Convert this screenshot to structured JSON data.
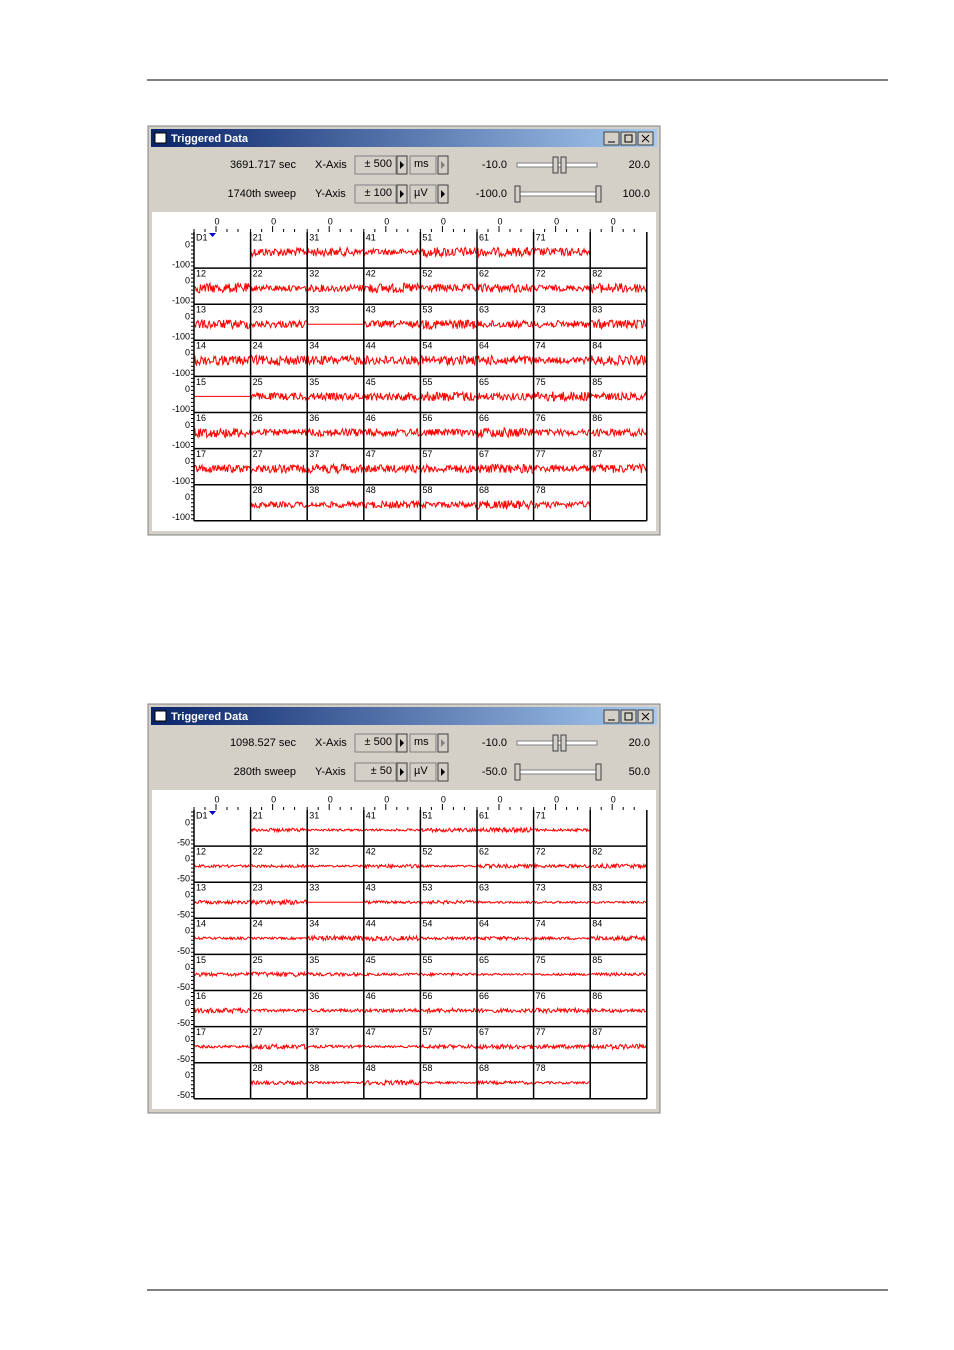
{
  "windows": [
    {
      "title": "Triggered Data",
      "time": "3691.717 sec",
      "sweep": "1740th sweep",
      "x_axis_label": "X-Axis",
      "x_range": "± 500",
      "x_unit": "ms",
      "x_min": "-10.0",
      "x_max": "20.0",
      "y_axis_label": "Y-Axis",
      "y_range": "± 100",
      "y_unit": "µV",
      "y_min": "-100.0",
      "y_max": "100.0",
      "x_tick": "0",
      "y_ticks": [
        "0",
        "-100"
      ],
      "channels": [
        [
          "D1",
          "21",
          "31",
          "41",
          "51",
          "61",
          "71",
          null
        ],
        [
          "12",
          "22",
          "32",
          "42",
          "52",
          "62",
          "72",
          "82"
        ],
        [
          "13",
          "23",
          "33",
          "43",
          "53",
          "63",
          "73",
          "83"
        ],
        [
          "14",
          "24",
          "34",
          "44",
          "54",
          "64",
          "74",
          "84"
        ],
        [
          "15",
          "25",
          "35",
          "45",
          "55",
          "65",
          "75",
          "85"
        ],
        [
          "16",
          "26",
          "36",
          "46",
          "56",
          "66",
          "76",
          "86"
        ],
        [
          "17",
          "27",
          "37",
          "47",
          "57",
          "67",
          "77",
          "87"
        ],
        [
          null,
          "28",
          "38",
          "48",
          "58",
          "68",
          "78",
          null
        ]
      ]
    },
    {
      "title": "Triggered Data",
      "time": "1098.527 sec",
      "sweep": "280th sweep",
      "x_axis_label": "X-Axis",
      "x_range": "± 500",
      "x_unit": "ms",
      "x_min": "-10.0",
      "x_max": "20.0",
      "y_axis_label": "Y-Axis",
      "y_range": "± 50",
      "y_unit": "µV",
      "y_min": "-50.0",
      "y_max": "50.0",
      "x_tick": "0",
      "y_ticks": [
        "0",
        "-50"
      ],
      "channels": [
        [
          "D1",
          "21",
          "31",
          "41",
          "51",
          "61",
          "71",
          null
        ],
        [
          "12",
          "22",
          "32",
          "42",
          "52",
          "62",
          "72",
          "82"
        ],
        [
          "13",
          "23",
          "33",
          "43",
          "53",
          "63",
          "73",
          "83"
        ],
        [
          "14",
          "24",
          "34",
          "44",
          "54",
          "64",
          "74",
          "84"
        ],
        [
          "15",
          "25",
          "35",
          "45",
          "55",
          "65",
          "75",
          "85"
        ],
        [
          "16",
          "26",
          "36",
          "46",
          "56",
          "66",
          "76",
          "86"
        ],
        [
          "17",
          "27",
          "37",
          "47",
          "57",
          "67",
          "77",
          "87"
        ],
        [
          null,
          "28",
          "38",
          "48",
          "58",
          "68",
          "78",
          null
        ]
      ]
    }
  ]
}
